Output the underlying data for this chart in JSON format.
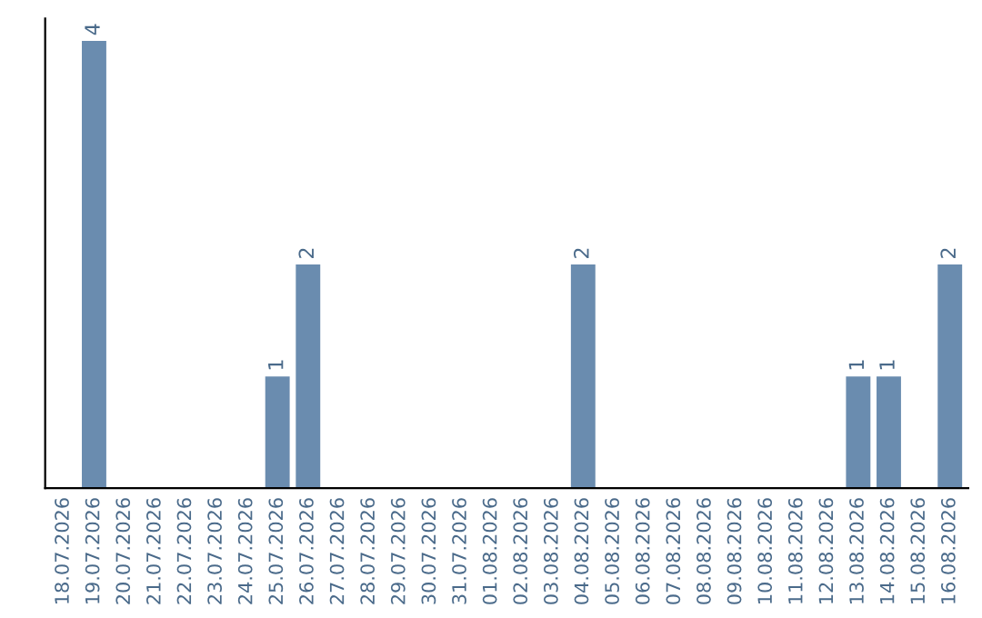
{
  "chart_data": {
    "type": "bar",
    "categories": [
      "18.07.2026",
      "19.07.2026",
      "20.07.2026",
      "21.07.2026",
      "22.07.2026",
      "23.07.2026",
      "24.07.2026",
      "25.07.2026",
      "26.07.2026",
      "27.07.2026",
      "28.07.2026",
      "29.07.2026",
      "30.07.2026",
      "31.07.2026",
      "01.08.2026",
      "02.08.2026",
      "03.08.2026",
      "04.08.2026",
      "05.08.2026",
      "06.08.2026",
      "07.08.2026",
      "08.08.2026",
      "09.08.2026",
      "10.08.2026",
      "11.08.2026",
      "12.08.2026",
      "13.08.2026",
      "14.08.2026",
      "15.08.2026",
      "16.08.2026"
    ],
    "values": [
      0,
      4,
      0,
      0,
      0,
      0,
      0,
      1,
      2,
      0,
      0,
      0,
      0,
      0,
      0,
      0,
      0,
      2,
      0,
      0,
      0,
      0,
      0,
      0,
      0,
      0,
      1,
      1,
      0,
      2
    ],
    "value_labels": [
      null,
      "4",
      null,
      null,
      null,
      null,
      null,
      "1",
      "2",
      null,
      null,
      null,
      null,
      null,
      null,
      null,
      null,
      "2",
      null,
      null,
      null,
      null,
      null,
      null,
      null,
      null,
      "1",
      "1",
      null,
      "2"
    ],
    "color": "#6a8caf",
    "tick_labels": "x",
    "grid": false
  }
}
